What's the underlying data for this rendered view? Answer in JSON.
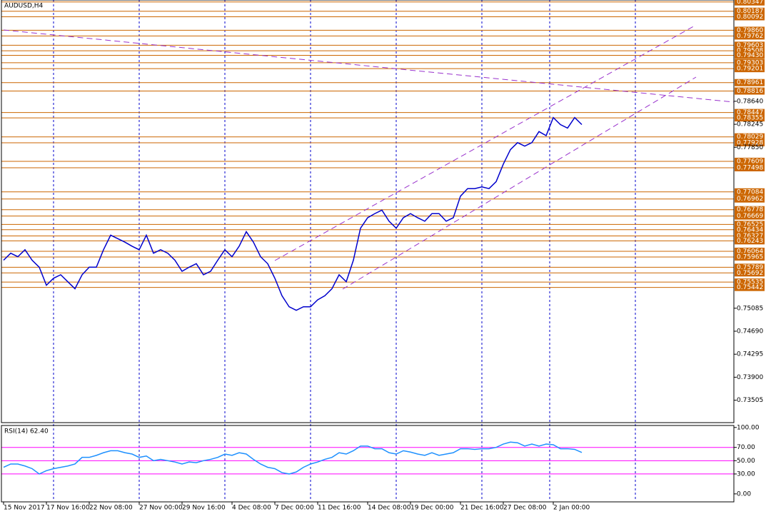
{
  "chart_data": [
    {
      "type": "line",
      "title": "AUDUSD,H4",
      "color": "#0000cc",
      "categories": [
        "15 Nov 2017",
        null,
        null,
        null,
        null,
        null,
        "17 Nov 16:00",
        null,
        null,
        null,
        null,
        null,
        "22 Nov 08:00",
        null,
        null,
        null,
        null,
        null,
        null,
        "27 Nov 00:00",
        null,
        null,
        null,
        null,
        null,
        "29 Nov 16:00",
        null,
        null,
        null,
        null,
        null,
        null,
        "4 Dec 08:00",
        null,
        null,
        null,
        null,
        null,
        "7 Dec 00:00",
        null,
        null,
        null,
        null,
        null,
        "11 Dec 16:00",
        null,
        null,
        null,
        null,
        null,
        null,
        "14 Dec 08:00",
        null,
        null,
        null,
        null,
        null,
        "19 Dec 00:00",
        null,
        null,
        null,
        null,
        null,
        null,
        "21 Dec 16:00",
        null,
        null,
        null,
        null,
        null,
        "27 Dec 08:00",
        null,
        null,
        null,
        null,
        null,
        null,
        "2 Jan 00:00",
        null,
        null,
        null,
        null
      ],
      "values": [
        0.7591,
        0.7603,
        0.7597,
        0.7609,
        0.7591,
        0.7579,
        0.7548,
        0.756,
        0.7566,
        0.7554,
        0.7542,
        0.7566,
        0.7579,
        0.7579,
        0.7609,
        0.7634,
        0.7628,
        0.7622,
        0.7615,
        0.7609,
        0.7634,
        0.7603,
        0.7609,
        0.7603,
        0.7591,
        0.7572,
        0.7579,
        0.7585,
        0.7566,
        0.7572,
        0.7591,
        0.7609,
        0.7597,
        0.7615,
        0.764,
        0.7622,
        0.7597,
        0.7585,
        0.756,
        0.753,
        0.7511,
        0.7505,
        0.7511,
        0.7511,
        0.7523,
        0.753,
        0.7542,
        0.7566,
        0.7554,
        0.7591,
        0.7646,
        0.7664,
        0.7671,
        0.7677,
        0.7658,
        0.7646,
        0.7664,
        0.7671,
        0.7664,
        0.7658,
        0.7671,
        0.7671,
        0.7658,
        0.7664,
        0.7701,
        0.7714,
        0.7714,
        0.7717,
        0.7714,
        0.7726,
        0.7756,
        0.7781,
        0.7793,
        0.7787,
        0.7793,
        0.7812,
        0.7805,
        0.7836,
        0.7824,
        0.7818,
        0.7836,
        0.7824
      ],
      "ylim": [
        0.7312,
        0.8038
      ],
      "yticks": [
        {
          "value": 0.7864,
          "label": "0.78640"
        },
        0.78245,
        {
          "value": 0.7785,
          "label": "0.77850"
        },
        0.75085,
        {
          "value": 0.7469,
          "label": "0.74690"
        },
        0.74295,
        {
          "value": 0.739,
          "label": "0.73900"
        },
        0.73505
      ],
      "levels": [
        0.80347,
        0.80187,
        0.80092,
        {
          "value": 0.7986,
          "label": "0.79860"
        },
        0.79762,
        0.79603,
        0.79508,
        {
          "value": 0.7943,
          "label": "0.79430"
        },
        0.79303,
        0.79201,
        0.78961,
        0.78816,
        0.78447,
        0.78355,
        0.78029,
        0.77928,
        0.77609,
        0.77498,
        0.77084,
        0.76962,
        0.76778,
        0.76669,
        0.76525,
        0.76434,
        0.76327,
        0.76243,
        0.76064,
        0.75965,
        0.75789,
        0.75692,
        0.75535,
        0.75442
      ],
      "level_color": "#cc6600"
    },
    {
      "type": "line",
      "title": "RSI(14) 62.40",
      "color": "#1e90ff",
      "values": [
        40,
        45,
        45,
        42,
        38,
        30,
        35,
        38,
        40,
        42,
        45,
        55,
        55,
        58,
        62,
        65,
        65,
        62,
        60,
        55,
        57,
        50,
        52,
        50,
        48,
        45,
        48,
        47,
        50,
        52,
        55,
        60,
        58,
        62,
        60,
        52,
        45,
        40,
        38,
        32,
        30,
        33,
        40,
        45,
        48,
        52,
        55,
        62,
        60,
        65,
        72,
        72,
        68,
        68,
        62,
        60,
        65,
        63,
        60,
        58,
        62,
        58,
        60,
        62,
        68,
        68,
        67,
        68,
        68,
        70,
        75,
        78,
        77,
        72,
        75,
        72,
        75,
        74,
        68,
        68,
        67,
        62.4
      ],
      "ylim": [
        -12,
        103
      ],
      "yticks": [
        {
          "value": 100,
          "label": "100.00"
        },
        {
          "value": 70,
          "label": "70.00"
        },
        {
          "value": 50,
          "label": "50.00"
        },
        {
          "value": 30,
          "label": "30.00"
        },
        {
          "value": 0,
          "label": "0.00"
        }
      ],
      "levels": [
        70,
        50,
        30
      ],
      "level_color": "#ff00ff"
    }
  ]
}
